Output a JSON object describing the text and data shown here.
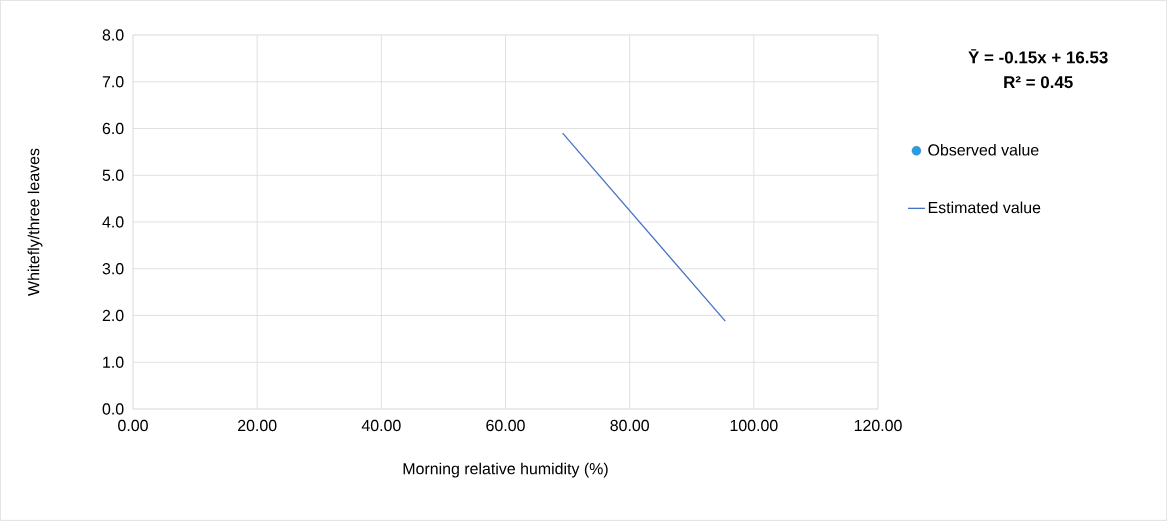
{
  "chart_data": {
    "type": "line",
    "xlabel": "Morning relative humidity (%)",
    "ylabel": "Whitefly/three leaves",
    "annotations": [
      "Ȳ  = -0.15x + 16.53",
      "R² = 0.45"
    ],
    "series": [
      {
        "name": "Observed value",
        "type": "scatter",
        "color": "#1e9ff0",
        "marker": "circle"
      },
      {
        "name": "Estimated value",
        "color": "#4472c4",
        "marker": "none",
        "line_style": "solid",
        "x": [
          69.2,
          95.4
        ],
        "values": [
          5.9,
          1.88
        ]
      }
    ],
    "xlim": [
      0,
      120
    ],
    "ylim": [
      0,
      8
    ],
    "xticks": [
      {
        "value": 0,
        "label": "0.00"
      },
      {
        "value": 20,
        "label": "20.00"
      },
      {
        "value": 40,
        "label": "40.00"
      },
      {
        "value": 60,
        "label": "60.00"
      },
      {
        "value": 80,
        "label": "80.00"
      },
      {
        "value": 100,
        "label": "100.00"
      },
      {
        "value": 120,
        "label": "120.00"
      }
    ],
    "yticks": [
      {
        "value": 0,
        "label": "0.0"
      },
      {
        "value": 1,
        "label": "1.0"
      },
      {
        "value": 2,
        "label": "2.0"
      },
      {
        "value": 3,
        "label": "3.0"
      },
      {
        "value": 4,
        "label": "4.0"
      },
      {
        "value": 5,
        "label": "5.0"
      },
      {
        "value": 6,
        "label": "6.0"
      },
      {
        "value": 7,
        "label": "7.0"
      },
      {
        "value": 8,
        "label": "8.0"
      }
    ],
    "grid": true,
    "legend": "right"
  }
}
